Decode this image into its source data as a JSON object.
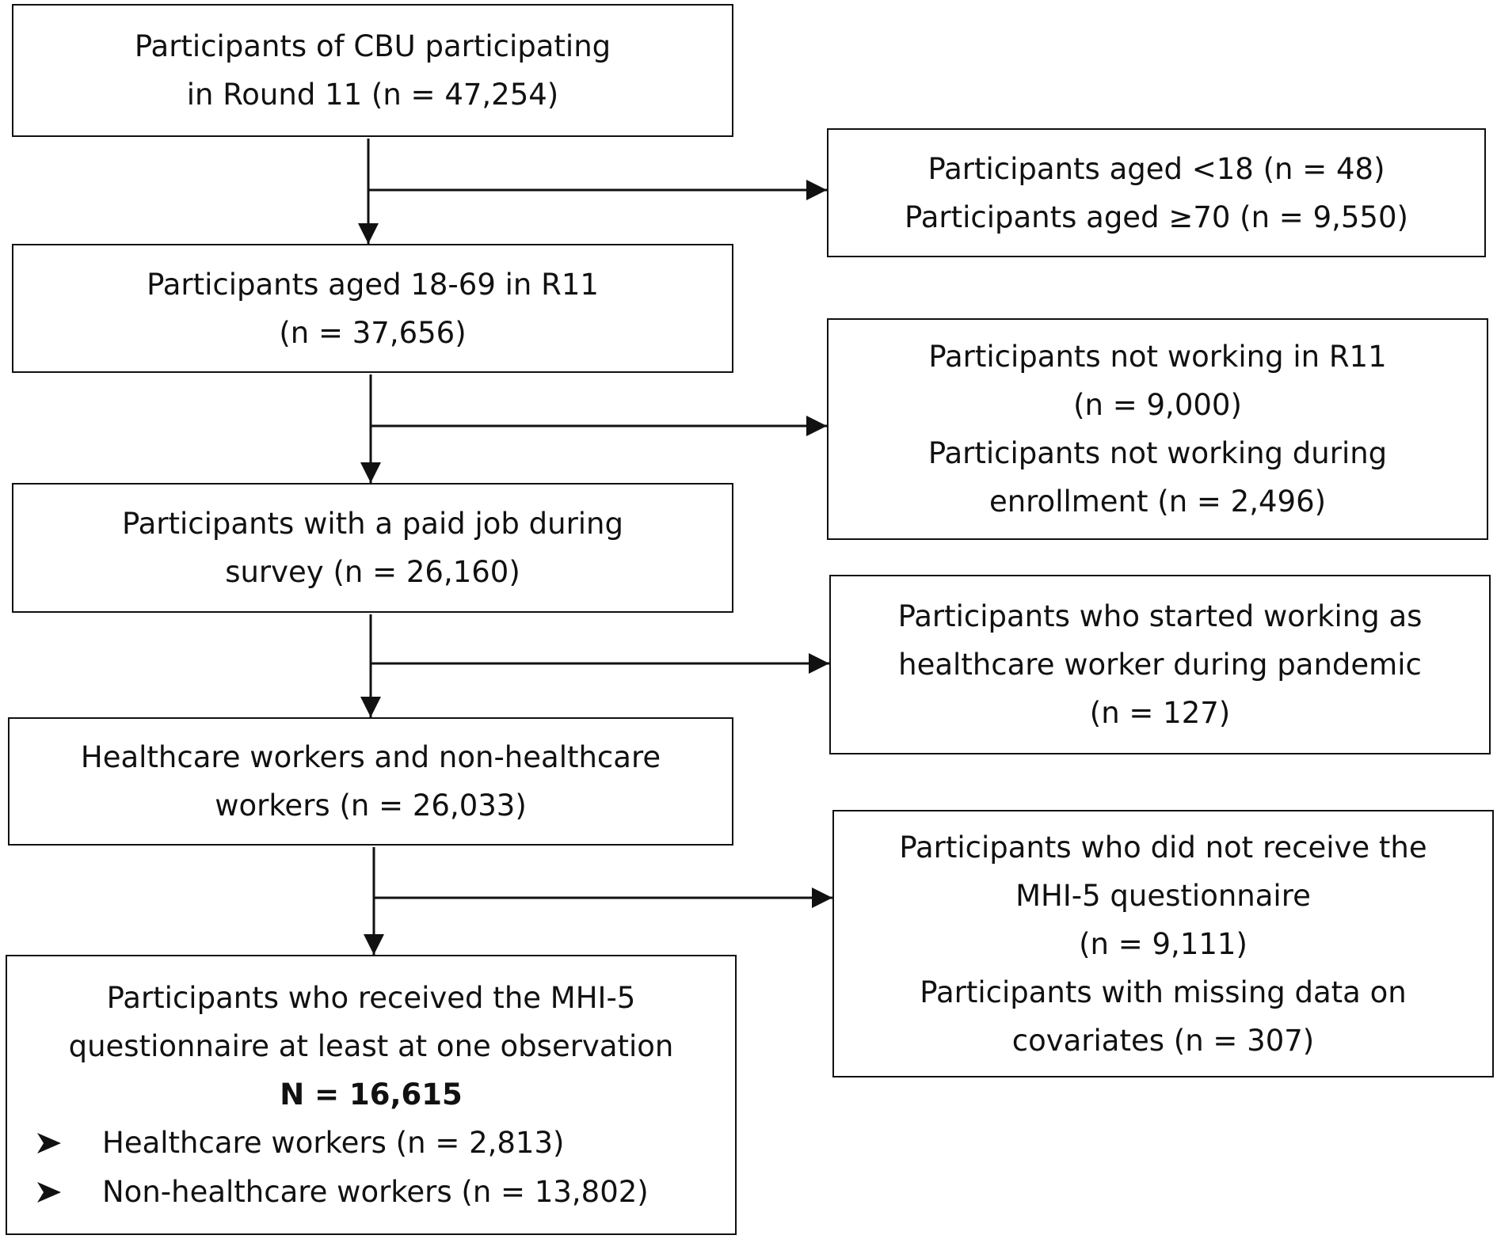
{
  "flow": {
    "main": [
      {
        "lines": [
          "Participants of CBU participating",
          "in Round 11 (n = 47,254)"
        ]
      },
      {
        "lines": [
          "Participants aged 18-69 in R11",
          "(n = 37,656)"
        ]
      },
      {
        "lines": [
          "Participants with a paid job during",
          "survey (n = 26,160)"
        ]
      },
      {
        "lines": [
          "Healthcare workers and non-healthcare",
          "workers (n = 26,033)"
        ]
      },
      {
        "lines": [
          "Participants who received the MHI-5",
          "questionnaire at least at one observation"
        ],
        "total": "N = 16,615",
        "bullets": [
          "Healthcare workers (n = 2,813)",
          "Non-healthcare workers (n = 13,802)"
        ]
      }
    ],
    "excluded": [
      {
        "lines": [
          "Participants aged <18 (n = 48)",
          "Participants aged ≥70 (n = 9,550)"
        ]
      },
      {
        "lines": [
          "Participants not working in R11",
          "(n = 9,000)",
          "Participants not working during",
          "enrollment (n = 2,496)"
        ]
      },
      {
        "lines": [
          "Participants who started working as",
          "healthcare worker during pandemic",
          "(n = 127)"
        ]
      },
      {
        "lines": [
          "Participants who did not receive the",
          "MHI-5 questionnaire",
          "(n = 9,111)",
          "Participants with missing data on",
          "covariates (n = 307)"
        ]
      }
    ]
  },
  "colors": {
    "line": "#111111",
    "background": "#ffffff"
  },
  "icons": {
    "bullet": "arrowhead-bullet-icon"
  }
}
